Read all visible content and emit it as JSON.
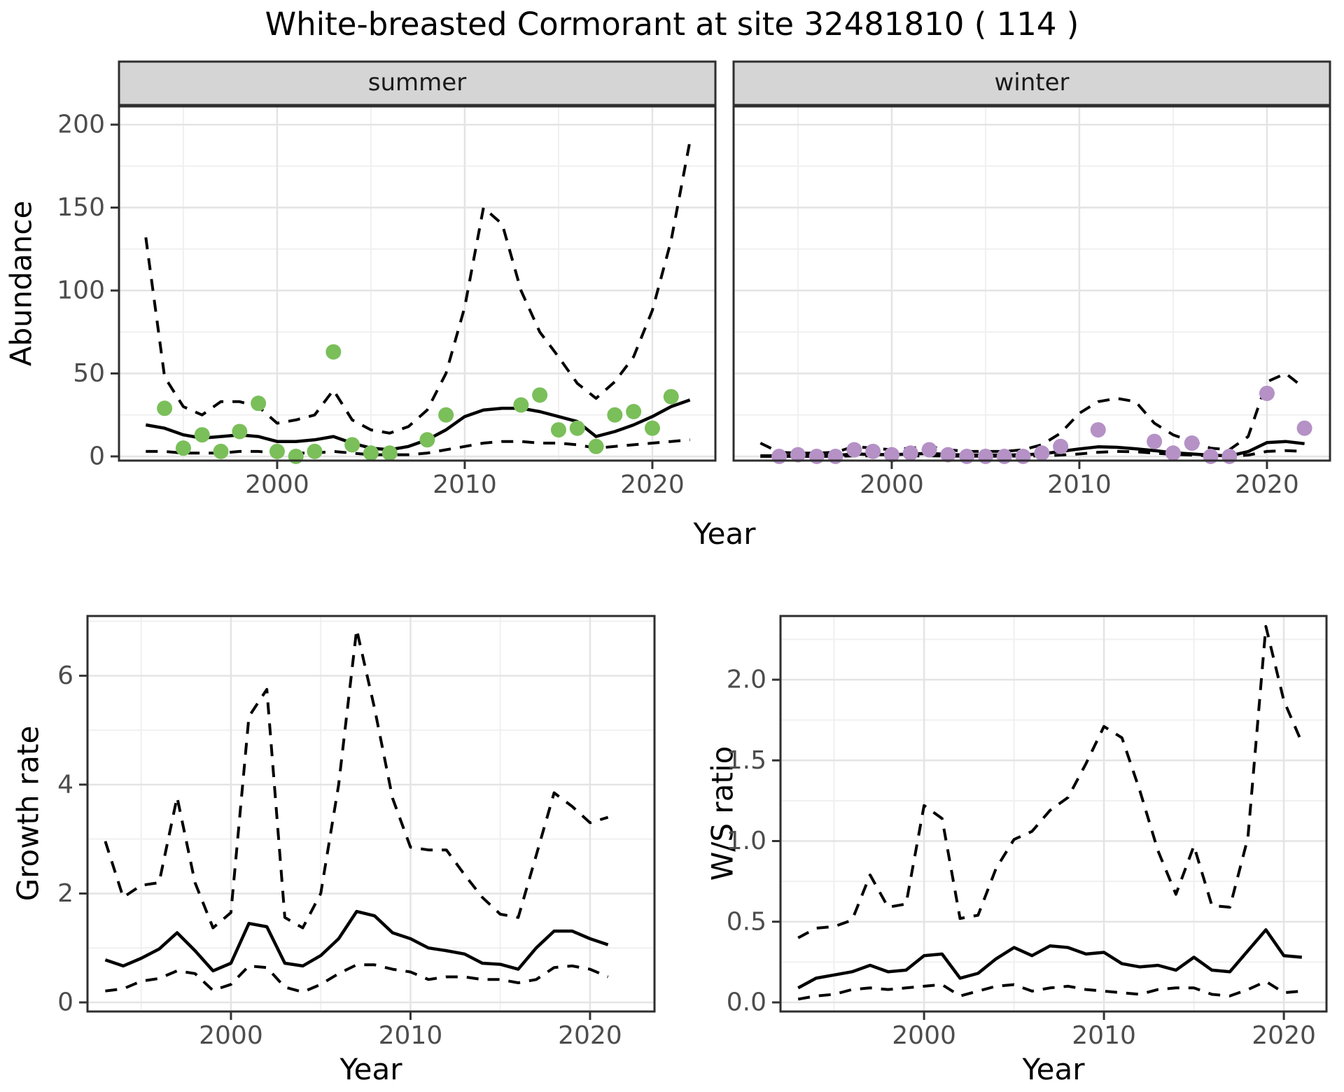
{
  "title": "White-breasted Cormorant at site 32481810 ( 114 )",
  "labels": {
    "year": "Year",
    "abundance": "Abundance",
    "growth": "Growth rate",
    "ws": "W/S ratio"
  },
  "colors": {
    "summer_point": "#7abf5a",
    "winter_point": "#b591c6",
    "line": "#000000",
    "grid_major": "#e4e4e4",
    "grid_minor": "#f0f0f0",
    "panel_border": "#2e2e2e",
    "strip_bg": "#d5d5d5",
    "strip_text": "#1a1a1a",
    "tick_text": "#4d4d4d",
    "tick_mark": "#333333",
    "panel_bg": "#ffffff"
  },
  "chart_data": [
    {
      "id": "summer",
      "type": "scatter",
      "facet_label": "summer",
      "x_axis_title": "Year",
      "y_axis_title": "Abundance",
      "xlim": [
        1991.57,
        2023.36
      ],
      "ylim": [
        -2.53,
        211.0
      ],
      "x_major": [
        2000,
        2010,
        2020
      ],
      "x_minor": [
        1995,
        2005,
        2015
      ],
      "y_major": [
        0,
        50,
        100,
        150,
        200
      ],
      "y_minor": [
        25,
        75,
        125,
        175
      ],
      "x_tick_labels": [
        "2000",
        "2010",
        "2020"
      ],
      "y_tick_labels": [
        "0",
        "50",
        "100",
        "150",
        "200"
      ],
      "points": {
        "color_key": "summer_point",
        "years": [
          1994,
          1995,
          1996,
          1997,
          1998,
          1999,
          2000,
          2001,
          2002,
          2003,
          2004,
          2005,
          2006,
          2008,
          2009,
          2013,
          2014,
          2015,
          2016,
          2017,
          2018,
          2019,
          2020,
          2021
        ],
        "values": [
          29,
          5,
          13,
          3,
          15,
          32,
          3,
          0,
          3,
          63,
          7,
          2,
          2,
          10,
          25,
          31,
          37,
          16,
          17,
          6,
          25,
          27,
          17,
          36
        ]
      },
      "fit": {
        "start_year": 1993,
        "values": [
          19,
          17,
          13,
          11,
          12,
          13,
          12,
          9,
          9,
          10,
          12,
          8,
          5,
          4,
          6,
          10,
          16,
          24,
          28,
          29,
          29,
          27,
          24,
          21,
          12,
          15,
          19,
          24,
          30,
          34
        ]
      },
      "ci_upper": {
        "start_year": 1993,
        "values": [
          132,
          48,
          30,
          25,
          33,
          33,
          30,
          20,
          22,
          25,
          40,
          22,
          16,
          14,
          18,
          28,
          50,
          90,
          150,
          140,
          100,
          75,
          60,
          44,
          35,
          45,
          60,
          88,
          130,
          190
        ]
      },
      "ci_lower": {
        "start_year": 1993,
        "values": [
          3,
          3,
          2,
          2,
          2,
          3,
          3,
          2,
          2,
          2,
          3,
          2,
          1,
          1,
          1,
          2,
          4,
          6,
          8,
          9,
          9,
          8,
          8,
          7,
          5,
          6,
          7,
          8,
          9,
          10
        ]
      }
    },
    {
      "id": "winter",
      "type": "scatter",
      "facet_label": "winter",
      "x_axis_title": "Year",
      "y_axis_title": "Abundance",
      "xlim": [
        1991.57,
        2023.36
      ],
      "ylim": [
        -2.53,
        211.0
      ],
      "x_major": [
        2000,
        2010,
        2020
      ],
      "x_minor": [
        1995,
        2005,
        2015
      ],
      "y_major": [
        0,
        50,
        100,
        150,
        200
      ],
      "y_minor": [
        25,
        75,
        125,
        175
      ],
      "x_tick_labels": [
        "2000",
        "2010",
        "2020"
      ],
      "y_tick_labels": [],
      "points": {
        "color_key": "winter_point",
        "years": [
          1994,
          1995,
          1996,
          1997,
          1998,
          1999,
          2000,
          2001,
          2002,
          2003,
          2004,
          2005,
          2006,
          2007,
          2008,
          2009,
          2011,
          2014,
          2015,
          2016,
          2017,
          2018,
          2020,
          2022
        ],
        "values": [
          0,
          1,
          0,
          0,
          4,
          3,
          1,
          2,
          4,
          1,
          0,
          0,
          0,
          0,
          2,
          6,
          16,
          9,
          2,
          8,
          0,
          0,
          38,
          17
        ]
      },
      "fit": {
        "start_year": 1993,
        "values": [
          0.3,
          0.3,
          0.4,
          0.4,
          0.5,
          1.5,
          1.2,
          1.0,
          1.5,
          1.8,
          1.2,
          0.8,
          0.8,
          0.8,
          1.0,
          1.5,
          3.0,
          4.5,
          5.8,
          5.5,
          4.6,
          3.5,
          2.2,
          1.5,
          0.7,
          0.3,
          2.9,
          8.3,
          9.0,
          7.7
        ]
      },
      "ci_upper": {
        "start_year": 1993,
        "values": [
          8,
          2.5,
          2,
          2,
          2.5,
          6,
          5,
          4,
          5,
          6,
          4,
          3,
          3,
          3,
          4,
          7,
          14,
          26,
          33,
          35,
          33,
          20,
          13,
          9,
          5,
          4,
          12,
          45,
          50,
          41
        ]
      },
      "ci_lower": {
        "start_year": 1993,
        "values": [
          0,
          0,
          0,
          0,
          0,
          0.3,
          0.3,
          0.2,
          0.3,
          0.4,
          0.2,
          0.1,
          0.1,
          0.1,
          0.2,
          0.3,
          0.8,
          1.5,
          2.5,
          3,
          2.8,
          2,
          1.2,
          0.8,
          0.3,
          0.1,
          0.8,
          3,
          3.5,
          3
        ]
      }
    },
    {
      "id": "growth",
      "type": "line",
      "facet_label": null,
      "x_axis_title": "Year",
      "y_axis_title": "Growth rate",
      "xlim": [
        1992.01,
        2023.59
      ],
      "ylim": [
        -0.167,
        7.097
      ],
      "x_major": [
        2000,
        2010,
        2020
      ],
      "x_minor": [
        1995,
        2005,
        2015
      ],
      "y_major": [
        0,
        2,
        4,
        6
      ],
      "y_minor": [
        1,
        3,
        5,
        7
      ],
      "x_tick_labels": [
        "2000",
        "2010",
        "2020"
      ],
      "y_tick_labels": [
        "0",
        "2",
        "4",
        "6"
      ],
      "points": null,
      "fit": {
        "start_year": 1993,
        "values": [
          0.78,
          0.67,
          0.81,
          0.98,
          1.28,
          0.95,
          0.58,
          0.72,
          1.45,
          1.39,
          0.72,
          0.67,
          0.86,
          1.17,
          1.67,
          1.59,
          1.28,
          1.17,
          1.0,
          0.95,
          0.89,
          0.72,
          0.7,
          0.61,
          1.0,
          1.31,
          1.31,
          1.17,
          1.06
        ]
      },
      "ci_upper": {
        "start_year": 1993,
        "values": [
          2.96,
          1.93,
          2.15,
          2.2,
          3.77,
          2.2,
          1.37,
          1.65,
          5.25,
          5.75,
          1.56,
          1.37,
          2.0,
          4.0,
          6.85,
          5.4,
          3.75,
          2.85,
          2.8,
          2.8,
          2.35,
          1.93,
          1.62,
          1.56,
          2.7,
          3.85,
          3.6,
          3.3,
          3.4
        ]
      },
      "ci_lower": {
        "start_year": 1993,
        "values": [
          0.21,
          0.25,
          0.39,
          0.44,
          0.58,
          0.53,
          0.22,
          0.33,
          0.67,
          0.64,
          0.28,
          0.19,
          0.33,
          0.53,
          0.69,
          0.69,
          0.61,
          0.56,
          0.42,
          0.47,
          0.47,
          0.42,
          0.42,
          0.36,
          0.42,
          0.64,
          0.67,
          0.61,
          0.47
        ]
      }
    },
    {
      "id": "ws",
      "type": "line",
      "facet_label": null,
      "x_axis_title": "Year",
      "y_axis_title": "W/S ratio",
      "xlim": [
        1992.02,
        2022.37
      ],
      "ylim": [
        -0.0564,
        2.3948
      ],
      "x_major": [
        2000,
        2010,
        2020
      ],
      "x_minor": [
        1995,
        2005,
        2015
      ],
      "y_major": [
        0.0,
        0.5,
        1.0,
        1.5,
        2.0
      ],
      "y_minor": [
        0.25,
        0.75,
        1.25,
        1.75,
        2.25
      ],
      "x_tick_labels": [
        "2000",
        "2010",
        "2020"
      ],
      "y_tick_labels": [
        "0.0",
        "0.5",
        "1.0",
        "1.5",
        "2.0"
      ],
      "points": null,
      "fit": {
        "start_year": 1993,
        "values": [
          0.09,
          0.15,
          0.17,
          0.19,
          0.23,
          0.19,
          0.2,
          0.29,
          0.3,
          0.15,
          0.18,
          0.27,
          0.34,
          0.29,
          0.35,
          0.34,
          0.3,
          0.31,
          0.24,
          0.22,
          0.23,
          0.2,
          0.28,
          0.2,
          0.19,
          0.32,
          0.45,
          0.29,
          0.28
        ]
      },
      "ci_upper": {
        "start_year": 1993,
        "values": [
          0.4,
          0.46,
          0.47,
          0.51,
          0.79,
          0.59,
          0.61,
          1.22,
          1.14,
          0.52,
          0.54,
          0.83,
          1.01,
          1.06,
          1.19,
          1.27,
          1.48,
          1.71,
          1.64,
          1.31,
          0.94,
          0.67,
          0.97,
          0.6,
          0.59,
          1.02,
          2.33,
          1.87,
          1.61
        ]
      },
      "ci_lower": {
        "start_year": 1993,
        "values": [
          0.02,
          0.04,
          0.05,
          0.08,
          0.09,
          0.08,
          0.09,
          0.1,
          0.11,
          0.04,
          0.07,
          0.1,
          0.11,
          0.07,
          0.09,
          0.1,
          0.08,
          0.07,
          0.06,
          0.05,
          0.08,
          0.09,
          0.09,
          0.05,
          0.04,
          0.08,
          0.13,
          0.06,
          0.07
        ]
      }
    }
  ]
}
